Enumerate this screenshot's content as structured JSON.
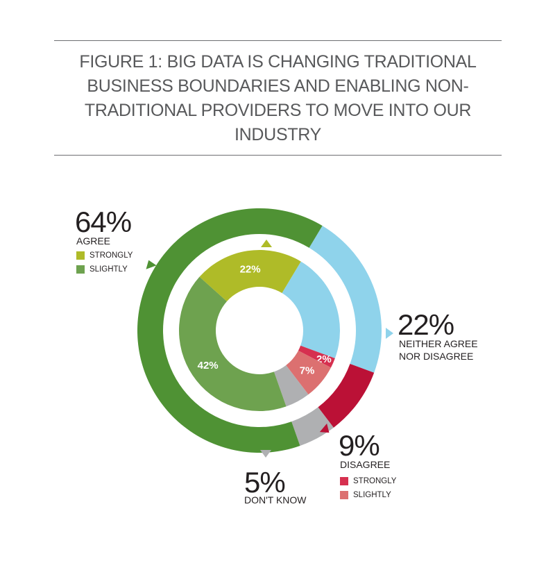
{
  "title": "FIGURE 1: BIG DATA IS CHANGING TRADITIONAL BUSINESS BOUNDARIES AND ENABLING NON-TRADITIONAL PROVIDERS TO MOVE INTO OUR INDUSTRY",
  "colors": {
    "agree_total": "#4f9234",
    "agree_strongly": "#afbb28",
    "agree_slightly": "#6ea24f",
    "neither": "#8fd3eb",
    "disagree_total": "#bb1136",
    "disagree_strongly": "#d6304f",
    "disagree_slightly": "#dc7070",
    "dont_know": "#afb0b2"
  },
  "chart_data": {
    "type": "pie",
    "variant": "nested-donut",
    "title": "FIGURE 1: BIG DATA IS CHANGING TRADITIONAL BUSINESS BOUNDARIES AND ENABLING NON-TRADITIONAL PROVIDERS TO MOVE INTO OUR INDUSTRY",
    "outer": [
      {
        "key": "neither",
        "value": 22
      },
      {
        "key": "disagree_total",
        "value": 9
      },
      {
        "key": "dont_know",
        "value": 5
      },
      {
        "key": "agree_total",
        "value": 64
      }
    ],
    "inner": [
      {
        "key": "neither",
        "value": 22,
        "label": ""
      },
      {
        "key": "disagree_strongly",
        "value": 2,
        "label": "2%"
      },
      {
        "key": "disagree_slightly",
        "value": 7,
        "label": "7%"
      },
      {
        "key": "dont_know",
        "value": 5,
        "label": ""
      },
      {
        "key": "agree_slightly",
        "value": 42,
        "label": "42%"
      },
      {
        "key": "agree_strongly",
        "value": 22,
        "label": "22%"
      }
    ],
    "start_angle_deg": 31
  },
  "labels": {
    "agree": {
      "pct": "64%",
      "caption": "AGREE",
      "legend": [
        "STRONGLY",
        "SLIGHTLY"
      ]
    },
    "neither": {
      "pct": "22%",
      "caption_line1": "NEITHER AGREE",
      "caption_line2": "NOR DISAGREE"
    },
    "disagree": {
      "pct": "9%",
      "caption": "DISAGREE",
      "legend": [
        "STRONGLY",
        "SLIGHTLY"
      ]
    },
    "dont_know": {
      "pct": "5%",
      "caption": "DON'T KNOW"
    }
  }
}
